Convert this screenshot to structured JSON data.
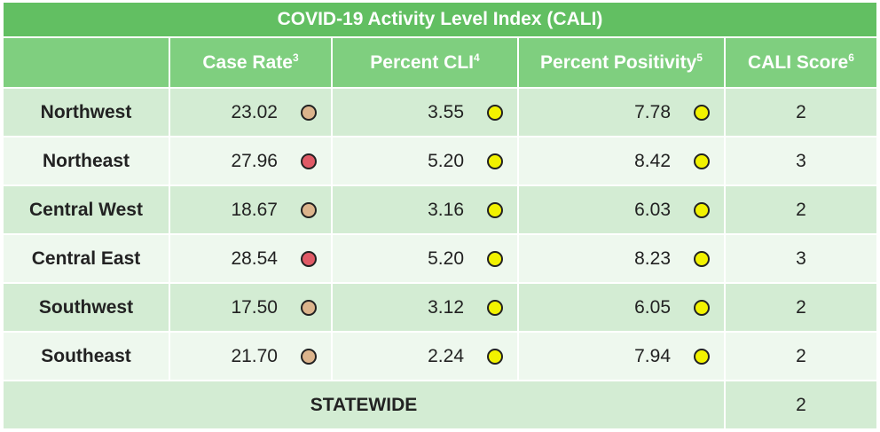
{
  "table": {
    "title": "COVID-19 Activity Level Index (CALI)",
    "columns": [
      {
        "text": "Case Rate",
        "sup": "3"
      },
      {
        "text": "Percent CLI",
        "sup": "4"
      },
      {
        "text": "Percent Positivity",
        "sup": "5"
      },
      {
        "text": "CALI Score",
        "sup": "6"
      }
    ],
    "rows": [
      {
        "region": "Northwest",
        "cells": [
          {
            "text": "23.02",
            "dot": "#dcb48c"
          },
          {
            "text": "3.55",
            "dot": "#f2f200"
          },
          {
            "text": "7.78",
            "dot": "#f2f200"
          }
        ],
        "score": "2"
      },
      {
        "region": "Northeast",
        "cells": [
          {
            "text": "27.96",
            "dot": "#e05a66"
          },
          {
            "text": "5.20",
            "dot": "#f2f200"
          },
          {
            "text": "8.42",
            "dot": "#f2f200"
          }
        ],
        "score": "3"
      },
      {
        "region": "Central West",
        "cells": [
          {
            "text": "18.67",
            "dot": "#dcb48c"
          },
          {
            "text": "3.16",
            "dot": "#f2f200"
          },
          {
            "text": "6.03",
            "dot": "#f2f200"
          }
        ],
        "score": "2"
      },
      {
        "region": "Central East",
        "cells": [
          {
            "text": "28.54",
            "dot": "#e05a66"
          },
          {
            "text": "5.20",
            "dot": "#f2f200"
          },
          {
            "text": "8.23",
            "dot": "#f2f200"
          }
        ],
        "score": "3"
      },
      {
        "region": "Southwest",
        "cells": [
          {
            "text": "17.50",
            "dot": "#dcb48c"
          },
          {
            "text": "3.12",
            "dot": "#f2f200"
          },
          {
            "text": "6.05",
            "dot": "#f2f200"
          }
        ],
        "score": "2"
      },
      {
        "region": "Southeast",
        "cells": [
          {
            "text": "21.70",
            "dot": "#dcb48c"
          },
          {
            "text": "2.24",
            "dot": "#f2f200"
          },
          {
            "text": "7.94",
            "dot": "#f2f200"
          }
        ],
        "score": "2"
      }
    ],
    "statewide": {
      "label": "STATEWIDE",
      "score": "2"
    }
  }
}
